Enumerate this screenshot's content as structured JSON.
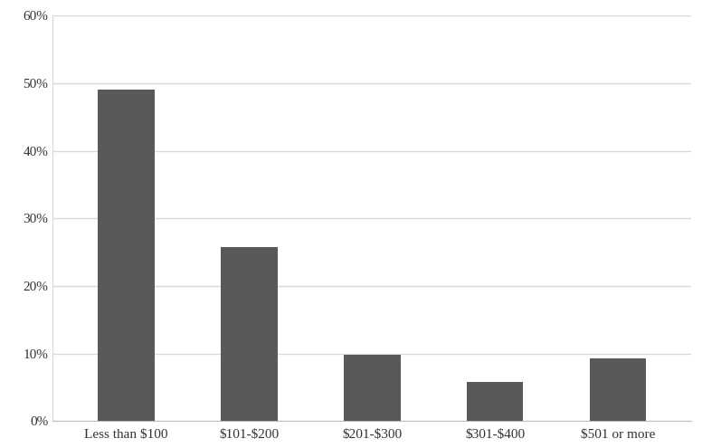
{
  "chart_data": {
    "type": "bar",
    "categories": [
      "Less than $100",
      "$101-$200",
      "$201-$300",
      "$301-$400",
      "$501 or more"
    ],
    "values": [
      49.1,
      25.8,
      9.8,
      5.8,
      9.3
    ],
    "color": "#595959",
    "ylim": [
      0,
      60
    ],
    "yticks": [
      {
        "value": 0,
        "label": "0%"
      },
      {
        "value": 10,
        "label": "10%"
      },
      {
        "value": 20,
        "label": "20%"
      },
      {
        "value": 30,
        "label": "30%"
      },
      {
        "value": 40,
        "label": "40%"
      },
      {
        "value": 50,
        "label": "50%"
      },
      {
        "value": 60,
        "label": "60%"
      }
    ],
    "grid": true
  }
}
